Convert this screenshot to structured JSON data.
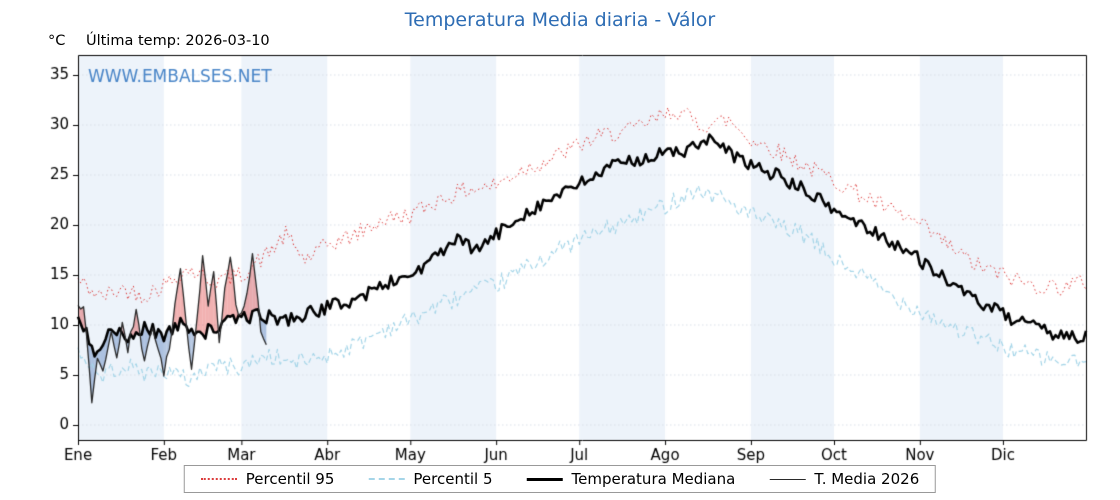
{
  "chart_data": {
    "type": "line",
    "title": "Temperatura Media diaria - Válor",
    "ylabel": "°C",
    "annotation": "Última temp: 2026-03-10",
    "watermark": "WWW.EMBALSES.NET",
    "legend_position": "bottom",
    "x_tick_labels": [
      "Ene",
      "Feb",
      "Mar",
      "Abr",
      "May",
      "Jun",
      "Jul",
      "Ago",
      "Sep",
      "Oct",
      "Nov",
      "Dic"
    ],
    "month_start_days": [
      0,
      31,
      59,
      90,
      120,
      151,
      181,
      212,
      243,
      273,
      304,
      334
    ],
    "days_in_year": 365,
    "ylim": [
      -1.5,
      37
    ],
    "yticks": [
      0,
      5,
      10,
      15,
      20,
      25,
      30,
      35
    ],
    "grid": true,
    "noise_seed": 42,
    "colors": {
      "band": "#edf3fa",
      "grid": "#d9dfe8",
      "frame": "#000000",
      "watermark": "#4a86c8",
      "title": "#2e6db4",
      "fill_above": "rgba(224,82,82,0.45)",
      "fill_below": "rgba(108,144,198,0.5)"
    },
    "series": [
      {
        "name": "Percentil 95",
        "color": "#dc3c3c",
        "style": "dotted",
        "width": 1,
        "noise": 0.9,
        "anchors": [
          [
            0,
            14.5
          ],
          [
            8,
            12.8
          ],
          [
            16,
            13.6
          ],
          [
            24,
            13.0
          ],
          [
            31,
            14.0
          ],
          [
            40,
            15.6
          ],
          [
            48,
            14.4
          ],
          [
            59,
            15.0
          ],
          [
            68,
            17.0
          ],
          [
            75,
            19.0
          ],
          [
            82,
            16.5
          ],
          [
            90,
            18.0
          ],
          [
            100,
            19.0
          ],
          [
            110,
            20.5
          ],
          [
            120,
            21.0
          ],
          [
            130,
            22.5
          ],
          [
            140,
            23.5
          ],
          [
            151,
            24.0
          ],
          [
            160,
            25.5
          ],
          [
            170,
            26.5
          ],
          [
            181,
            28.0
          ],
          [
            190,
            29.0
          ],
          [
            200,
            29.5
          ],
          [
            208,
            30.5
          ],
          [
            216,
            31.5
          ],
          [
            225,
            30.0
          ],
          [
            235,
            30.5
          ],
          [
            243,
            28.5
          ],
          [
            252,
            27.5
          ],
          [
            262,
            26.0
          ],
          [
            273,
            24.5
          ],
          [
            283,
            23.0
          ],
          [
            293,
            21.5
          ],
          [
            304,
            20.0
          ],
          [
            314,
            18.0
          ],
          [
            324,
            16.0
          ],
          [
            334,
            15.0
          ],
          [
            344,
            14.0
          ],
          [
            354,
            13.8
          ],
          [
            364,
            14.3
          ]
        ]
      },
      {
        "name": "Percentil 5",
        "color": "#a5d5e8",
        "style": "dashed",
        "width": 1.2,
        "noise": 0.9,
        "anchors": [
          [
            0,
            7.5
          ],
          [
            8,
            4.8
          ],
          [
            16,
            6.0
          ],
          [
            24,
            5.2
          ],
          [
            31,
            5.5
          ],
          [
            40,
            4.5
          ],
          [
            48,
            6.0
          ],
          [
            59,
            5.8
          ],
          [
            68,
            7.0
          ],
          [
            78,
            6.2
          ],
          [
            90,
            7.0
          ],
          [
            100,
            8.0
          ],
          [
            110,
            9.5
          ],
          [
            120,
            10.5
          ],
          [
            130,
            12.0
          ],
          [
            140,
            13.0
          ],
          [
            151,
            14.0
          ],
          [
            160,
            15.5
          ],
          [
            170,
            17.0
          ],
          [
            181,
            18.5
          ],
          [
            190,
            19.5
          ],
          [
            200,
            20.5
          ],
          [
            212,
            22.0
          ],
          [
            222,
            23.5
          ],
          [
            232,
            22.8
          ],
          [
            243,
            21.0
          ],
          [
            252,
            20.0
          ],
          [
            262,
            19.0
          ],
          [
            273,
            16.5
          ],
          [
            283,
            15.0
          ],
          [
            293,
            13.0
          ],
          [
            304,
            11.5
          ],
          [
            314,
            10.0
          ],
          [
            324,
            8.8
          ],
          [
            334,
            7.8
          ],
          [
            344,
            7.0
          ],
          [
            354,
            6.3
          ],
          [
            364,
            6.3
          ]
        ]
      },
      {
        "name": "Temperatura Mediana",
        "color": "#000000",
        "style": "solid",
        "width": 2.6,
        "noise": 0.7,
        "anchors": [
          [
            0,
            10.5
          ],
          [
            6,
            7.5
          ],
          [
            12,
            9.5
          ],
          [
            18,
            8.5
          ],
          [
            24,
            9.8
          ],
          [
            31,
            9.0
          ],
          [
            38,
            10.2
          ],
          [
            45,
            9.2
          ],
          [
            52,
            10.0
          ],
          [
            59,
            10.8
          ],
          [
            66,
            11.0
          ],
          [
            74,
            10.5
          ],
          [
            82,
            11.0
          ],
          [
            90,
            11.8
          ],
          [
            100,
            12.5
          ],
          [
            110,
            14.0
          ],
          [
            120,
            15.0
          ],
          [
            128,
            16.5
          ],
          [
            136,
            18.5
          ],
          [
            144,
            17.5
          ],
          [
            151,
            19.0
          ],
          [
            160,
            21.0
          ],
          [
            170,
            22.5
          ],
          [
            181,
            24.0
          ],
          [
            190,
            25.5
          ],
          [
            200,
            26.5
          ],
          [
            210,
            27.0
          ],
          [
            220,
            27.5
          ],
          [
            228,
            28.5
          ],
          [
            236,
            27.0
          ],
          [
            243,
            26.0
          ],
          [
            252,
            25.0
          ],
          [
            262,
            23.5
          ],
          [
            273,
            21.5
          ],
          [
            283,
            20.0
          ],
          [
            293,
            18.5
          ],
          [
            304,
            16.5
          ],
          [
            312,
            15.0
          ],
          [
            320,
            13.0
          ],
          [
            328,
            12.0
          ],
          [
            334,
            11.0
          ],
          [
            342,
            10.0
          ],
          [
            352,
            9.2
          ],
          [
            364,
            8.8
          ]
        ]
      },
      {
        "name": "T. Media 2026",
        "color": "#2a2a2a",
        "style": "solid",
        "width": 1.3,
        "noise": 0.5,
        "end_day": 68,
        "anchors": [
          [
            0,
            11.5
          ],
          [
            2,
            12.0
          ],
          [
            5,
            2.5
          ],
          [
            7,
            7.0
          ],
          [
            9,
            5.0
          ],
          [
            12,
            9.0
          ],
          [
            14,
            6.5
          ],
          [
            16,
            10.5
          ],
          [
            18,
            7.5
          ],
          [
            21,
            11.5
          ],
          [
            24,
            6.0
          ],
          [
            27,
            10.0
          ],
          [
            29,
            7.5
          ],
          [
            31,
            5.0
          ],
          [
            33,
            8.0
          ],
          [
            35,
            12.0
          ],
          [
            37,
            16.0
          ],
          [
            39,
            10.0
          ],
          [
            41,
            6.0
          ],
          [
            43,
            11.0
          ],
          [
            45,
            16.5
          ],
          [
            47,
            12.0
          ],
          [
            49,
            15.5
          ],
          [
            51,
            8.5
          ],
          [
            53,
            13.5
          ],
          [
            55,
            16.8
          ],
          [
            57,
            12.0
          ],
          [
            59,
            10.8
          ],
          [
            61,
            13.0
          ],
          [
            63,
            17.5
          ],
          [
            65,
            12.0
          ],
          [
            66,
            9.5
          ],
          [
            68,
            8.3
          ]
        ]
      }
    ]
  }
}
